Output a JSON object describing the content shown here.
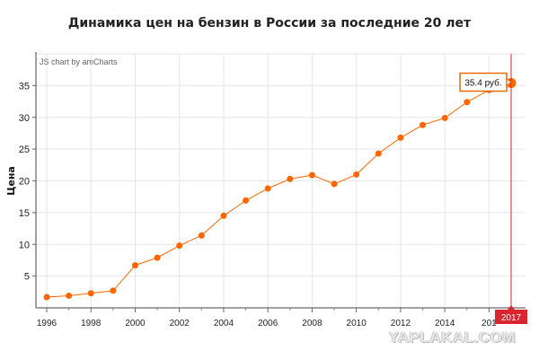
{
  "title": "Динамика цен на бензин в России за последние 20 лет",
  "credit": "JS chart by amCharts",
  "watermark": "YAPLAKAL.COM",
  "colors": {
    "series": "#ff6600",
    "cursor": "#d9262e",
    "balloon_border": "#e86a00",
    "grid": "#e6e6e6"
  },
  "chart_data": {
    "type": "line",
    "title": "Динамика цен на бензин в России за последние 20 лет",
    "xlabel": "",
    "ylabel": "Цена",
    "x": [
      1996,
      1997,
      1998,
      1999,
      2000,
      2001,
      2002,
      2003,
      2004,
      2005,
      2006,
      2007,
      2008,
      2009,
      2010,
      2011,
      2012,
      2013,
      2014,
      2015,
      2016,
      2017
    ],
    "series": [
      {
        "values": [
          1.7,
          1.9,
          2.3,
          2.7,
          6.7,
          7.9,
          9.8,
          11.4,
          14.5,
          16.9,
          18.8,
          20.3,
          20.9,
          19.5,
          21.0,
          24.3,
          26.8,
          28.8,
          29.9,
          32.4,
          34.3,
          35.4
        ]
      }
    ],
    "xlim": [
      1996,
      2017
    ],
    "ylim": [
      0,
      40
    ],
    "x_ticks": [
      "1996",
      "1998",
      "2000",
      "2002",
      "2004",
      "2006",
      "2008",
      "2010",
      "2012",
      "2014",
      "2016"
    ],
    "x_tick_labels_visible": [
      "1996",
      "1998",
      "2000",
      "2002",
      "2004",
      "2006",
      "2008",
      "2010",
      "2012",
      "2014",
      "201"
    ],
    "y_ticks": [
      5,
      10,
      15,
      20,
      25,
      30,
      35
    ],
    "grid": true,
    "cursor": {
      "x_label": "2017",
      "balloon": "35.4 руб."
    }
  }
}
